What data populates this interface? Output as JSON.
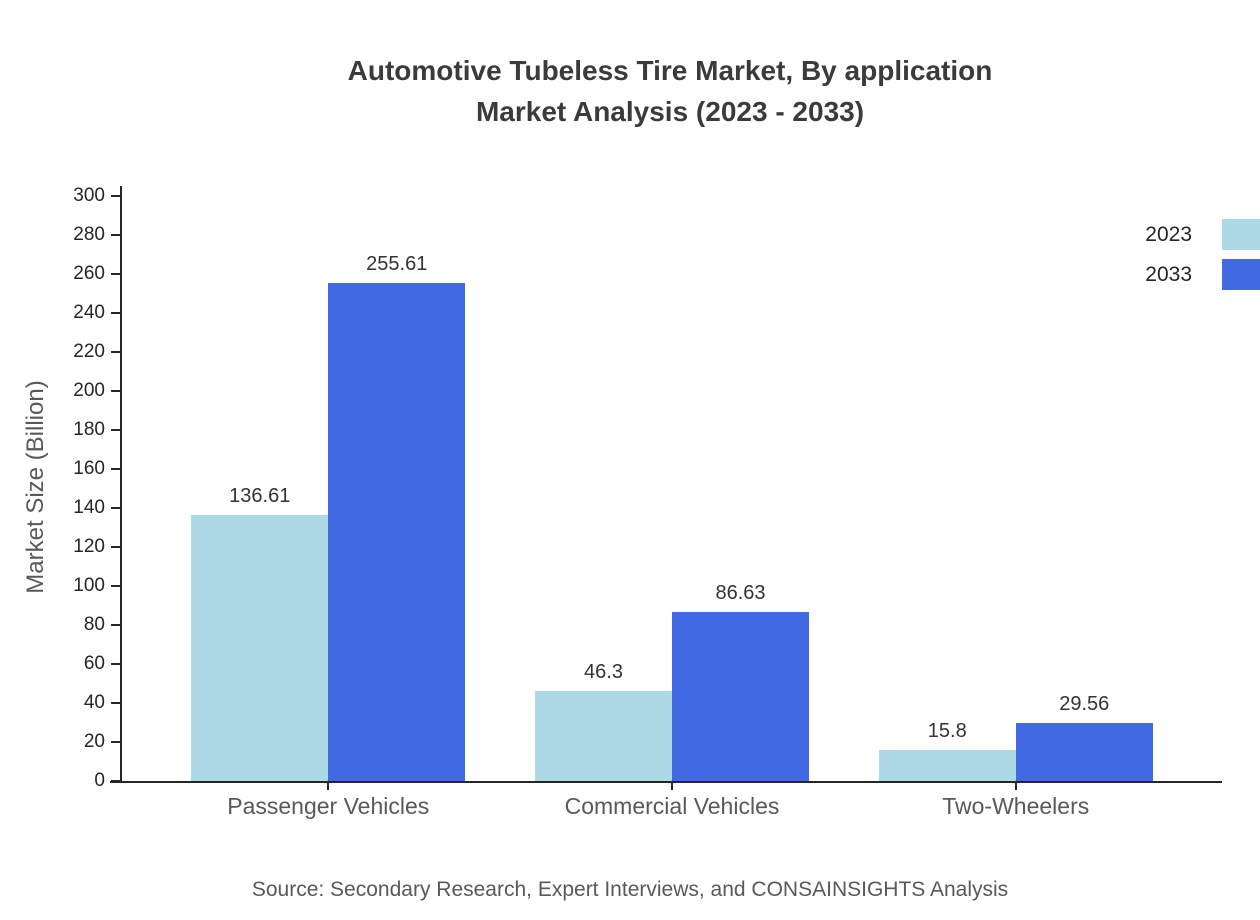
{
  "title_lines": [
    "Automotive Tubeless Tire Market, By application",
    "Market Analysis (2023 - 2033)"
  ],
  "source": "Source: Secondary Research, Expert Interviews, and CONSAINSIGHTS Analysis",
  "chart_data": {
    "type": "bar",
    "title": "Automotive Tubeless Tire Market, By application Market Analysis (2023 - 2033)",
    "categories": [
      "Passenger Vehicles",
      "Commercial Vehicles",
      "Two-Wheelers"
    ],
    "series": [
      {
        "name": "2023",
        "color": "#add8e6",
        "values": [
          136.61,
          46.3,
          15.8
        ]
      },
      {
        "name": "2033",
        "color": "#4169e1",
        "values": [
          255.61,
          86.63,
          29.56
        ]
      }
    ],
    "xlabel": "",
    "ylabel": "Market Size (Billion)",
    "ylim": [
      0,
      300
    ],
    "ytick_step": 20,
    "grid": false,
    "legend_position": "right-top"
  }
}
